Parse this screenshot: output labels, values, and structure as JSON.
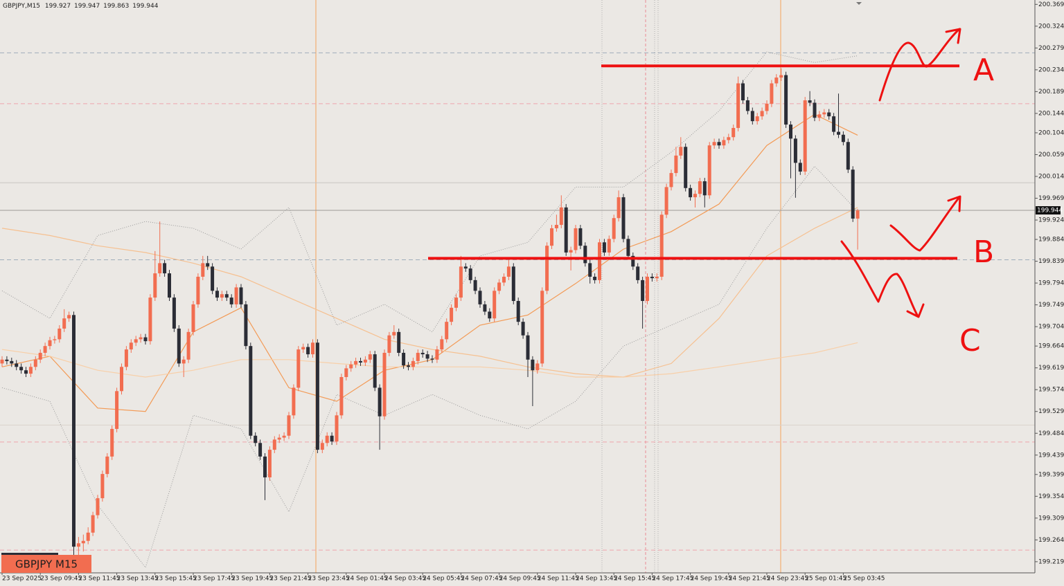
{
  "chart_data": {
    "type": "candlestick",
    "title": "GBPJPY,M15",
    "watermark": "GBPJPY M15",
    "categories": [
      "23 Sep 2025",
      null,
      null,
      null,
      null,
      null,
      null,
      null,
      "23 Sep 09:45",
      null,
      null,
      null,
      null,
      null,
      null,
      null,
      "23 Sep 11:45",
      null,
      null,
      null,
      null,
      null,
      null,
      null,
      "23 Sep 13:45",
      null,
      null,
      null,
      null,
      null,
      null,
      null,
      "23 Sep 15:45",
      null,
      null,
      null,
      null,
      null,
      null,
      null,
      "23 Sep 17:45",
      null,
      null,
      null,
      null,
      null,
      null,
      null,
      "23 Sep 19:45",
      null,
      null,
      null,
      null,
      null,
      null,
      null,
      "23 Sep 21:45",
      null,
      null,
      null,
      null,
      null,
      null,
      null,
      "23 Sep 23:45",
      null,
      null,
      null,
      null,
      null,
      null,
      null,
      "24 Sep 01:45",
      null,
      null,
      null,
      null,
      null,
      null,
      null,
      "24 Sep 03:45",
      null,
      null,
      null,
      null,
      null,
      null,
      null,
      "24 Sep 05:45",
      null,
      null,
      null,
      null,
      null,
      null,
      null,
      "24 Sep 07:45",
      null,
      null,
      null,
      null,
      null,
      null,
      null,
      "24 Sep 09:45",
      null,
      null,
      null,
      null,
      null,
      null,
      null,
      "24 Sep 11:45",
      null,
      null,
      null,
      null,
      null,
      null,
      null,
      "24 Sep 13:45",
      null,
      null,
      null,
      null,
      null,
      null,
      null,
      "24 Sep 15:45",
      null,
      null,
      null,
      null,
      null,
      null,
      null,
      "24 Sep 17:45",
      null,
      null,
      null,
      null,
      null,
      null,
      null,
      "24 Sep 19:45",
      null,
      null,
      null,
      null,
      null,
      null,
      null,
      "24 Sep 21:45",
      null,
      null,
      null,
      null,
      null,
      null,
      null,
      "24 Sep 23:45",
      null,
      null,
      null,
      null,
      null,
      null,
      null,
      "25 Sep 01:45",
      null,
      null,
      null,
      null,
      null,
      null,
      null,
      "25 Sep 03:45",
      null,
      null,
      null
    ],
    "open": [
      199.628,
      199.636,
      199.633,
      199.628,
      199.621,
      199.614,
      199.607,
      199.621,
      199.636,
      199.65,
      199.664,
      199.676,
      199.678,
      199.7,
      199.721,
      199.728,
      199.25,
      199.257,
      199.262,
      199.279,
      199.315,
      199.35,
      199.4,
      199.436,
      199.493,
      199.571,
      199.621,
      199.657,
      199.671,
      199.678,
      199.682,
      199.674,
      199.764,
      199.814,
      199.835,
      199.814,
      199.764,
      199.7,
      199.628,
      199.636,
      199.693,
      199.75,
      199.807,
      199.835,
      199.828,
      199.778,
      199.764,
      199.771,
      199.764,
      199.75,
      199.785,
      199.75,
      199.664,
      199.479,
      199.464,
      199.436,
      199.393,
      199.45,
      199.471,
      199.475,
      199.479,
      199.521,
      199.578,
      199.657,
      199.662,
      199.647,
      199.671,
      199.45,
      199.464,
      199.479,
      199.467,
      199.521,
      199.6,
      199.618,
      199.626,
      199.633,
      199.63,
      199.636,
      199.647,
      199.578,
      199.519,
      199.65,
      199.686,
      199.693,
      199.65,
      199.624,
      199.621,
      199.633,
      199.65,
      199.647,
      199.638,
      199.636,
      199.657,
      199.678,
      199.714,
      199.743,
      199.764,
      199.828,
      199.824,
      199.8,
      199.778,
      199.75,
      199.735,
      199.721,
      199.778,
      199.795,
      199.807,
      199.828,
      199.757,
      199.714,
      199.686,
      199.636,
      199.614,
      199.628,
      199.778,
      199.871,
      199.907,
      199.914,
      199.95,
      199.857,
      199.862,
      199.907,
      199.871,
      199.835,
      199.807,
      199.8,
      199.878,
      199.857,
      199.885,
      199.928,
      199.971,
      199.885,
      199.85,
      199.828,
      199.8,
      199.757,
      199.807,
      199.804,
      199.807,
      199.935,
      199.992,
      200.021,
      200.057,
      200.075,
      199.99,
      199.971,
      199.978,
      200.004,
      199.975,
      200.078,
      200.085,
      200.078,
      200.089,
      200.095,
      200.114,
      200.206,
      200.171,
      200.149,
      200.128,
      200.138,
      200.149,
      200.164,
      200.206,
      200.218,
      200.223,
      200.121,
      200.092,
      200.042,
      200.024,
      200.171,
      200.166,
      200.135,
      200.142,
      200.146,
      200.138,
      200.106,
      200.1,
      200.085,
      200.028,
      199.927
    ],
    "high": [
      199.643,
      199.643,
      199.64,
      199.635,
      199.628,
      199.621,
      199.628,
      199.643,
      199.657,
      199.671,
      199.683,
      199.685,
      199.707,
      199.74,
      199.735,
      199.735,
      199.27,
      199.275,
      199.29,
      199.322,
      199.357,
      199.407,
      199.443,
      199.5,
      199.578,
      199.628,
      199.664,
      199.678,
      199.685,
      199.689,
      199.689,
      199.771,
      199.86,
      199.921,
      199.842,
      199.821,
      199.771,
      199.707,
      199.643,
      199.7,
      199.757,
      199.814,
      199.85,
      199.85,
      199.835,
      199.785,
      199.778,
      199.778,
      199.771,
      199.792,
      199.792,
      199.757,
      199.671,
      199.486,
      199.471,
      199.443,
      199.457,
      199.478,
      199.482,
      199.486,
      199.528,
      199.585,
      199.664,
      199.669,
      199.669,
      199.678,
      199.678,
      199.471,
      199.486,
      199.486,
      199.528,
      199.607,
      199.625,
      199.633,
      199.64,
      199.64,
      199.643,
      199.654,
      199.654,
      199.585,
      199.657,
      199.693,
      199.707,
      199.7,
      199.657,
      199.631,
      199.64,
      199.657,
      199.657,
      199.654,
      199.645,
      199.664,
      199.685,
      199.721,
      199.75,
      199.771,
      199.85,
      199.835,
      199.831,
      199.807,
      199.785,
      199.757,
      199.742,
      199.785,
      199.802,
      199.814,
      199.842,
      199.835,
      199.764,
      199.721,
      199.693,
      199.643,
      199.635,
      199.785,
      199.878,
      199.914,
      199.935,
      199.975,
      199.957,
      199.869,
      199.914,
      199.914,
      199.878,
      199.842,
      199.814,
      199.885,
      199.885,
      199.892,
      199.935,
      199.985,
      199.978,
      199.892,
      199.857,
      199.835,
      199.807,
      199.814,
      199.814,
      199.814,
      199.942,
      199.999,
      200.028,
      200.075,
      200.095,
      200.082,
      199.997,
      199.985,
      200.011,
      200.011,
      200.085,
      200.092,
      200.092,
      200.096,
      200.102,
      200.121,
      200.22,
      200.213,
      200.178,
      200.156,
      200.145,
      200.156,
      200.171,
      200.213,
      200.225,
      200.237,
      200.23,
      200.128,
      200.099,
      200.049,
      200.178,
      200.19,
      200.173,
      200.149,
      200.153,
      200.153,
      200.145,
      200.185,
      200.107,
      200.092,
      200.035,
      199.947
    ],
    "low": [
      199.621,
      199.626,
      199.621,
      199.614,
      199.607,
      199.6,
      199.6,
      199.614,
      199.629,
      199.643,
      199.657,
      199.669,
      199.671,
      199.693,
      199.714,
      199.23,
      199.22,
      199.24,
      199.255,
      199.272,
      199.308,
      199.343,
      199.393,
      199.429,
      199.486,
      199.564,
      199.614,
      199.65,
      199.664,
      199.671,
      199.667,
      199.667,
      199.757,
      199.807,
      199.807,
      199.757,
      199.693,
      199.621,
      199.6,
      199.629,
      199.686,
      199.743,
      199.8,
      199.821,
      199.771,
      199.757,
      199.757,
      199.757,
      199.743,
      199.743,
      199.743,
      199.657,
      199.472,
      199.457,
      199.429,
      199.346,
      199.386,
      199.443,
      199.464,
      199.468,
      199.472,
      199.514,
      199.571,
      199.65,
      199.64,
      199.64,
      199.443,
      199.443,
      199.457,
      199.46,
      199.46,
      199.514,
      199.593,
      199.611,
      199.619,
      199.623,
      199.623,
      199.629,
      199.571,
      199.45,
      199.512,
      199.643,
      199.679,
      199.643,
      199.617,
      199.614,
      199.614,
      199.626,
      199.64,
      199.631,
      199.629,
      199.629,
      199.65,
      199.671,
      199.707,
      199.736,
      199.757,
      199.817,
      199.793,
      199.771,
      199.743,
      199.728,
      199.714,
      199.714,
      199.771,
      199.788,
      199.8,
      199.75,
      199.707,
      199.679,
      199.6,
      199.54,
      199.607,
      199.621,
      199.771,
      199.864,
      199.9,
      199.907,
      199.85,
      199.82,
      199.855,
      199.864,
      199.828,
      199.793,
      199.793,
      199.793,
      199.85,
      199.85,
      199.878,
      199.921,
      199.878,
      199.843,
      199.821,
      199.793,
      199.7,
      199.75,
      199.797,
      199.797,
      199.8,
      199.928,
      199.985,
      200.014,
      200.05,
      199.983,
      199.964,
      199.95,
      199.971,
      199.95,
      199.968,
      200.071,
      200.071,
      200.071,
      200.082,
      200.088,
      200.107,
      200.164,
      200.142,
      200.121,
      200.121,
      200.131,
      200.142,
      200.157,
      200.199,
      200.211,
      200.114,
      200.01,
      199.97,
      200.017,
      200.017,
      200.159,
      200.128,
      200.128,
      200.135,
      200.131,
      200.099,
      200.093,
      200.078,
      200.021,
      199.92,
      199.863
    ],
    "close": [
      199.636,
      199.633,
      199.628,
      199.621,
      199.614,
      199.607,
      199.621,
      199.636,
      199.65,
      199.664,
      199.676,
      199.678,
      199.7,
      199.721,
      199.728,
      199.25,
      199.257,
      199.262,
      199.279,
      199.315,
      199.35,
      199.4,
      199.436,
      199.493,
      199.571,
      199.621,
      199.657,
      199.671,
      199.678,
      199.682,
      199.674,
      199.764,
      199.814,
      199.835,
      199.814,
      199.764,
      199.7,
      199.628,
      199.636,
      199.693,
      199.75,
      199.807,
      199.835,
      199.828,
      199.778,
      199.764,
      199.771,
      199.764,
      199.75,
      199.785,
      199.75,
      199.664,
      199.479,
      199.464,
      199.436,
      199.393,
      199.45,
      199.471,
      199.475,
      199.479,
      199.521,
      199.578,
      199.657,
      199.662,
      199.647,
      199.671,
      199.45,
      199.464,
      199.479,
      199.467,
      199.521,
      199.6,
      199.618,
      199.626,
      199.633,
      199.63,
      199.636,
      199.647,
      199.578,
      199.519,
      199.65,
      199.686,
      199.693,
      199.65,
      199.624,
      199.621,
      199.633,
      199.65,
      199.647,
      199.638,
      199.636,
      199.657,
      199.678,
      199.714,
      199.743,
      199.764,
      199.828,
      199.824,
      199.8,
      199.778,
      199.75,
      199.735,
      199.721,
      199.778,
      199.795,
      199.807,
      199.828,
      199.757,
      199.714,
      199.686,
      199.636,
      199.614,
      199.628,
      199.778,
      199.871,
      199.907,
      199.914,
      199.95,
      199.857,
      199.862,
      199.907,
      199.871,
      199.835,
      199.807,
      199.8,
      199.878,
      199.857,
      199.885,
      199.928,
      199.971,
      199.885,
      199.85,
      199.828,
      199.8,
      199.757,
      199.807,
      199.804,
      199.807,
      199.935,
      199.992,
      200.021,
      200.057,
      200.075,
      199.99,
      199.971,
      199.978,
      200.004,
      199.975,
      200.078,
      200.085,
      200.078,
      200.089,
      200.095,
      200.114,
      200.206,
      200.171,
      200.149,
      200.128,
      200.138,
      200.149,
      200.164,
      200.206,
      200.218,
      200.223,
      200.121,
      200.092,
      200.042,
      200.024,
      200.171,
      200.166,
      200.135,
      200.142,
      200.146,
      200.138,
      200.106,
      200.1,
      200.085,
      200.028,
      199.927,
      199.944
    ],
    "up_color": "#f26d50",
    "down_color": "#2b2d36",
    "ylim": [
      199.196,
      200.378
    ],
    "yticks": [
      199.219,
      199.264,
      199.309,
      199.354,
      199.399,
      199.439,
      199.484,
      199.529,
      199.574,
      199.619,
      199.664,
      199.704,
      199.749,
      199.794,
      199.839,
      199.884,
      199.924,
      199.969,
      200.014,
      200.059,
      200.104,
      200.144,
      200.189,
      200.234,
      200.279,
      200.324,
      200.369
    ],
    "overlays": [
      {
        "color": "#f39a55",
        "style": "solid",
        "x": [
          0,
          10,
          20,
          30,
          40,
          50,
          60,
          70,
          80,
          90,
          100,
          110,
          120,
          130,
          140,
          150,
          160,
          170,
          179
        ],
        "values": [
          199.621,
          199.643,
          199.536,
          199.529,
          199.693,
          199.743,
          199.578,
          199.55,
          199.614,
          199.636,
          199.707,
          199.728,
          199.793,
          199.864,
          199.9,
          199.957,
          200.078,
          200.142,
          200.099
        ]
      },
      {
        "color": "#f6c090",
        "style": "solid",
        "x": [
          0,
          10,
          20,
          30,
          40,
          50,
          60,
          70,
          80,
          90,
          100,
          110,
          120,
          130,
          140,
          150,
          160,
          170,
          179
        ],
        "values": [
          199.907,
          199.892,
          199.871,
          199.857,
          199.835,
          199.807,
          199.764,
          199.721,
          199.678,
          199.657,
          199.643,
          199.621,
          199.607,
          199.6,
          199.628,
          199.721,
          199.85,
          199.907,
          199.95
        ]
      },
      {
        "color": "#f8cfa8",
        "style": "solid",
        "x": [
          0,
          10,
          20,
          30,
          40,
          50,
          60,
          70,
          80,
          90,
          100,
          110,
          120,
          130,
          140,
          150,
          160,
          170,
          179
        ],
        "values": [
          199.657,
          199.643,
          199.614,
          199.6,
          199.614,
          199.636,
          199.636,
          199.628,
          199.621,
          199.621,
          199.621,
          199.614,
          199.6,
          199.6,
          199.607,
          199.621,
          199.636,
          199.65,
          199.671
        ]
      },
      {
        "color": "#9a9a9a",
        "style": "dotted",
        "x": [
          0,
          10,
          20,
          30,
          40,
          50,
          60,
          70,
          80,
          90,
          100,
          110,
          120,
          130,
          140,
          150,
          160,
          170,
          179
        ],
        "values": [
          199.778,
          199.721,
          199.892,
          199.921,
          199.907,
          199.864,
          199.95,
          199.707,
          199.75,
          199.693,
          199.85,
          199.878,
          199.992,
          199.992,
          200.064,
          200.149,
          200.271,
          200.249,
          200.263
        ]
      },
      {
        "color": "#9a9a9a",
        "style": "dotted",
        "x": [
          0,
          10,
          20,
          30,
          40,
          50,
          60,
          70,
          80,
          90,
          100,
          110,
          120,
          130,
          140,
          150,
          160,
          170,
          179
        ],
        "values": [
          199.578,
          199.55,
          199.336,
          199.207,
          199.521,
          199.493,
          199.322,
          199.564,
          199.521,
          199.564,
          199.521,
          199.493,
          199.55,
          199.664,
          199.707,
          199.75,
          199.907,
          200.035,
          199.942
        ]
      }
    ],
    "levels": [
      {
        "value": 200.269,
        "color": "#9eacbb",
        "style": "dashed"
      },
      {
        "value": 200.164,
        "color": "#efa4ac",
        "style": "dashed"
      },
      {
        "value": 200.001,
        "color": "#c9c6c2",
        "style": "solid"
      },
      {
        "value": 199.842,
        "color": "#9eacbb",
        "style": "dashed"
      },
      {
        "value": 199.501,
        "color": "#d9d2cb",
        "style": "solid"
      },
      {
        "value": 199.466,
        "color": "#efa4ac",
        "style": "dashed"
      },
      {
        "value": 199.243,
        "color": "#efa4ac",
        "style": "dashed"
      }
    ],
    "annotation_color": "#ee1111",
    "annotations": [
      {
        "label": "A",
        "value": 200.242
      },
      {
        "label": "B",
        "value": 199.845
      },
      {
        "label": "C"
      }
    ]
  }
}
